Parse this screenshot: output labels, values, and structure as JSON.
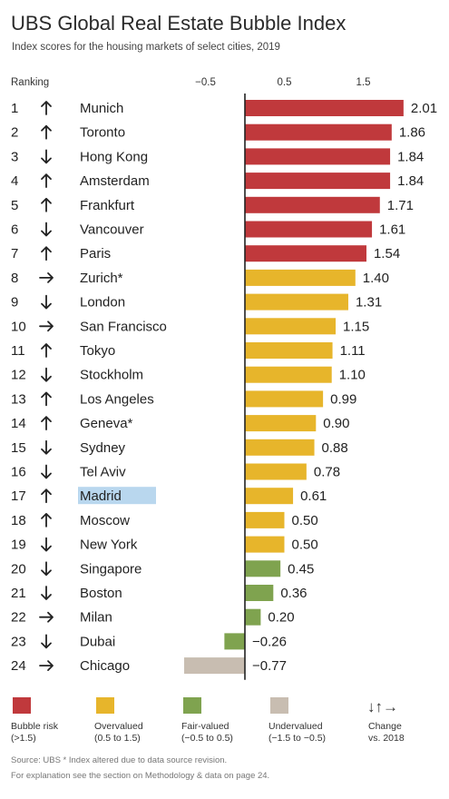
{
  "chart_data": {
    "type": "bar",
    "orientation": "horizontal",
    "title": "UBS Global Real Estate Bubble Index",
    "subtitle": "Index scores for the housing markets of select cities, 2019",
    "ranking_label": "Ranking",
    "x_ticks": [
      "−0.5",
      "0.5",
      "1.5"
    ],
    "x_tick_values": [
      -0.5,
      0.5,
      1.5
    ],
    "xlim": [
      -0.85,
      2.1
    ],
    "highlighted_city": "Madrid",
    "rows": [
      {
        "rank": "1",
        "trend": "up",
        "city": "Munich",
        "value": 2.01,
        "label": "2.01",
        "category": "bubble"
      },
      {
        "rank": "2",
        "trend": "up",
        "city": "Toronto",
        "value": 1.86,
        "label": "1.86",
        "category": "bubble"
      },
      {
        "rank": "3",
        "trend": "down",
        "city": "Hong Kong",
        "value": 1.84,
        "label": "1.84",
        "category": "bubble"
      },
      {
        "rank": "4",
        "trend": "up",
        "city": "Amsterdam",
        "value": 1.84,
        "label": "1.84",
        "category": "bubble"
      },
      {
        "rank": "5",
        "trend": "up",
        "city": "Frankfurt",
        "value": 1.71,
        "label": "1.71",
        "category": "bubble"
      },
      {
        "rank": "6",
        "trend": "down",
        "city": "Vancouver",
        "value": 1.61,
        "label": "1.61",
        "category": "bubble"
      },
      {
        "rank": "7",
        "trend": "up",
        "city": "Paris",
        "value": 1.54,
        "label": "1.54",
        "category": "bubble"
      },
      {
        "rank": "8",
        "trend": "right",
        "city": "Zurich*",
        "value": 1.4,
        "label": "1.40",
        "category": "overvalued"
      },
      {
        "rank": "9",
        "trend": "down",
        "city": "London",
        "value": 1.31,
        "label": "1.31",
        "category": "overvalued"
      },
      {
        "rank": "10",
        "trend": "right",
        "city": "San Francisco",
        "value": 1.15,
        "label": "1.15",
        "category": "overvalued"
      },
      {
        "rank": "11",
        "trend": "up",
        "city": "Tokyo",
        "value": 1.11,
        "label": "1.11",
        "category": "overvalued"
      },
      {
        "rank": "12",
        "trend": "down",
        "city": "Stockholm",
        "value": 1.1,
        "label": "1.10",
        "category": "overvalued"
      },
      {
        "rank": "13",
        "trend": "up",
        "city": "Los Angeles",
        "value": 0.99,
        "label": "0.99",
        "category": "overvalued"
      },
      {
        "rank": "14",
        "trend": "up",
        "city": "Geneva*",
        "value": 0.9,
        "label": "0.90",
        "category": "overvalued"
      },
      {
        "rank": "15",
        "trend": "down",
        "city": "Sydney",
        "value": 0.88,
        "label": "0.88",
        "category": "overvalued"
      },
      {
        "rank": "16",
        "trend": "down",
        "city": "Tel Aviv",
        "value": 0.78,
        "label": "0.78",
        "category": "overvalued"
      },
      {
        "rank": "17",
        "trend": "up",
        "city": "Madrid",
        "value": 0.61,
        "label": "0.61",
        "category": "overvalued"
      },
      {
        "rank": "18",
        "trend": "up",
        "city": "Moscow",
        "value": 0.5,
        "label": "0.50",
        "category": "overvalued"
      },
      {
        "rank": "19",
        "trend": "down",
        "city": "New York",
        "value": 0.5,
        "label": "0.50",
        "category": "overvalued"
      },
      {
        "rank": "20",
        "trend": "down",
        "city": "Singapore",
        "value": 0.45,
        "label": "0.45",
        "category": "fair"
      },
      {
        "rank": "21",
        "trend": "down",
        "city": "Boston",
        "value": 0.36,
        "label": "0.36",
        "category": "fair"
      },
      {
        "rank": "22",
        "trend": "right",
        "city": "Milan",
        "value": 0.2,
        "label": "0.20",
        "category": "fair"
      },
      {
        "rank": "23",
        "trend": "down",
        "city": "Dubai",
        "value": -0.26,
        "label": "−0.26",
        "category": "fair"
      },
      {
        "rank": "24",
        "trend": "right",
        "city": "Chicago",
        "value": -0.77,
        "label": "−0.77",
        "category": "undervalued"
      }
    ],
    "legend": [
      {
        "key": "bubble",
        "line1": "Bubble risk",
        "line2": "(>1.5)",
        "color": "#c0393c"
      },
      {
        "key": "overvalued",
        "line1": "Overvalued",
        "line2": "(0.5 to 1.5)",
        "color": "#e7b52b"
      },
      {
        "key": "fair",
        "line1": "Fair-valued",
        "line2": "(−0.5 to 0.5)",
        "color": "#7fa34f"
      },
      {
        "key": "undervalued",
        "line1": "Undervalued",
        "line2": "(−1.5 to −0.5)",
        "color": "#c8bdb1"
      }
    ],
    "change_legend": {
      "arrows": "↓↑→",
      "line1": "Change",
      "line2": "vs. 2018"
    },
    "footnote_1": "Source: UBS  * Index altered due to data source revision.",
    "footnote_2": "For explanation see the section on Methodology & data on page 24.",
    "highlight_color": "#b9d7ee",
    "grid": false
  }
}
